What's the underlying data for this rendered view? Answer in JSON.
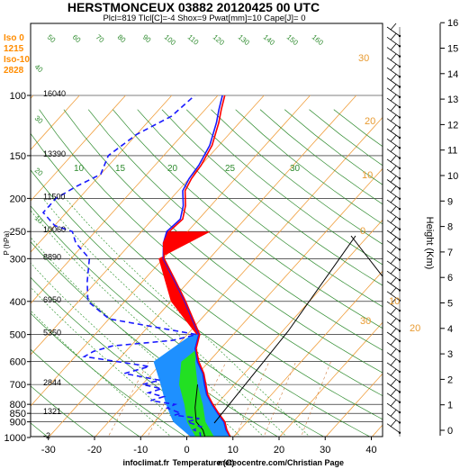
{
  "chart_data": {
    "type": "line",
    "title": "HERSTMONCEUX 03882 20120425 00 UTC",
    "subtitle": "Plcl=819 Tlcl[C]=-4 Shox=9 Pwat[mm]=10 Cape[J]= 0",
    "info_labels": [
      "Iso 0",
      "1215",
      "Iso-10",
      "2828"
    ],
    "xlabel": "Temperature (C)",
    "credit_left": "infoclimat.fr",
    "credit_right": "meteocentre.com/Christian Page",
    "ylabel": "P (hPa)",
    "ylabel_right": "Height (Km)",
    "x_ticks": [
      "-30",
      "-20",
      "-10",
      "0",
      "10",
      "20",
      "30",
      "40"
    ],
    "x_values": [
      -30,
      -20,
      -10,
      0,
      10,
      20,
      30,
      40
    ],
    "xlim": [
      -35,
      45
    ],
    "p_ticks": [
      "100",
      "150",
      "200",
      "250",
      "300",
      "400",
      "500",
      "600",
      "700",
      "800",
      "850",
      "900",
      "1000"
    ],
    "p_values": [
      100,
      150,
      200,
      250,
      300,
      400,
      500,
      600,
      700,
      800,
      850,
      900,
      1000
    ],
    "ylim": [
      1050,
      100
    ],
    "heights": [
      {
        "p": 100,
        "label": "16040"
      },
      {
        "p": 150,
        "label": "13390"
      },
      {
        "p": 200,
        "label": "11500"
      },
      {
        "p": 250,
        "label": "10060"
      },
      {
        "p": 300,
        "label": "8890"
      },
      {
        "p": 400,
        "label": "6950"
      },
      {
        "p": 500,
        "label": "5350"
      },
      {
        "p": 700,
        "label": "2844"
      },
      {
        "p": 850,
        "label": "1321"
      },
      {
        "p": 1000,
        "label": "-2"
      }
    ],
    "km_ticks": [
      "0",
      "1",
      "2",
      "3",
      "4",
      "5",
      "6",
      "7",
      "8",
      "9",
      "10",
      "11",
      "12",
      "13",
      "14",
      "15",
      "16"
    ],
    "isotherm_labels": [
      "10",
      "15",
      "20",
      "25",
      "30"
    ],
    "mixing_labels": [
      "50",
      "60",
      "70",
      "80",
      "90",
      "100",
      "110",
      "120",
      "130",
      "140",
      "150",
      "160",
      "40",
      "30",
      "20",
      "10"
    ],
    "hodograph_labels": [
      "30",
      "20",
      "10",
      "0",
      "10",
      "20",
      "30"
    ],
    "series": [
      {
        "name": "",
        "color": "#1a1aff",
        "values": [
          [
            1000,
            9.5
          ],
          [
            950,
            7
          ],
          [
            900,
            5
          ],
          [
            850,
            2
          ],
          [
            800,
            -1
          ],
          [
            750,
            -4
          ],
          [
            700,
            -6.5
          ],
          [
            650,
            -9
          ],
          [
            600,
            -12.5
          ],
          [
            550,
            -15.5
          ],
          [
            500,
            -17.5
          ],
          [
            450,
            -22
          ],
          [
            400,
            -27
          ],
          [
            350,
            -33
          ],
          [
            300,
            -40
          ],
          [
            270,
            -43
          ],
          [
            250,
            -44.5
          ],
          [
            230,
            -44
          ],
          [
            210,
            -46
          ],
          [
            190,
            -49
          ],
          [
            175,
            -50
          ],
          [
            160,
            -50.5
          ],
          [
            140,
            -52
          ],
          [
            120,
            -55
          ],
          [
            110,
            -57
          ],
          [
            100,
            -59
          ]
        ]
      },
      {
        "name": "",
        "color": "#ff0000",
        "values": [
          [
            1000,
            9.5
          ],
          [
            950,
            7.2
          ],
          [
            900,
            5.2
          ],
          [
            850,
            2.2
          ],
          [
            800,
            -0.8
          ],
          [
            750,
            -3.8
          ],
          [
            700,
            -6.2
          ],
          [
            650,
            -8.8
          ],
          [
            600,
            -12.2
          ],
          [
            550,
            -15.3
          ],
          [
            500,
            -17.3
          ],
          [
            450,
            -21.8
          ],
          [
            400,
            -26.8
          ],
          [
            350,
            -32.8
          ],
          [
            300,
            -39.8
          ],
          [
            270,
            -43
          ],
          [
            250,
            -44
          ],
          [
            230,
            -43.5
          ],
          [
            210,
            -45.5
          ],
          [
            190,
            -48.5
          ],
          [
            175,
            -49.5
          ],
          [
            160,
            -50
          ],
          [
            140,
            -51.5
          ],
          [
            120,
            -54.5
          ],
          [
            110,
            -56.5
          ],
          [
            100,
            -58.5
          ]
        ]
      },
      {
        "name": "",
        "color": "#1a1aff",
        "dashed": true,
        "values": [
          [
            1000,
            3
          ],
          [
            970,
            2
          ],
          [
            950,
            0
          ],
          [
            930,
            1
          ],
          [
            900,
            -3
          ],
          [
            880,
            -1
          ],
          [
            860,
            -7
          ],
          [
            850,
            -6
          ],
          [
            820,
            -10
          ],
          [
            800,
            -9
          ],
          [
            780,
            -15
          ],
          [
            760,
            -13
          ],
          [
            740,
            -17
          ],
          [
            720,
            -15
          ],
          [
            700,
            -20
          ],
          [
            680,
            -17
          ],
          [
            650,
            -26
          ],
          [
            620,
            -22
          ],
          [
            580,
            -38
          ],
          [
            560,
            -37
          ],
          [
            540,
            -34
          ],
          [
            520,
            -22
          ],
          [
            500,
            -18
          ],
          [
            450,
            -40
          ],
          [
            400,
            -48
          ],
          [
            350,
            -52
          ],
          [
            300,
            -56
          ],
          [
            270,
            -62
          ],
          [
            250,
            -65
          ],
          [
            240,
            -70
          ],
          [
            220,
            -75
          ],
          [
            200,
            -75
          ],
          [
            185,
            -73
          ],
          [
            170,
            -70
          ],
          [
            150,
            -72
          ],
          [
            130,
            -70
          ],
          [
            115,
            -66
          ],
          [
            100,
            -65
          ]
        ]
      }
    ]
  }
}
